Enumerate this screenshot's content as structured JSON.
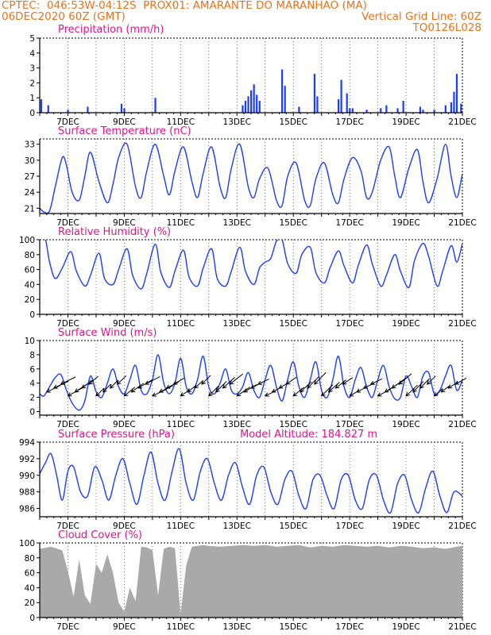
{
  "header": {
    "line1_left": "CPTEC:  046:53W-04:12S  PROX01: AMARANTE DO MARANHAO (MA)",
    "line2_left": "06DEC2020 60Z (GMT)",
    "line2_right": "Vertical Grid Line: 60Z",
    "line3_right": "TQ0126L028"
  },
  "colors": {
    "header": "#e8731c",
    "title": "#e0148a",
    "series": "#1a3cff",
    "cloud": "#a9a9a9"
  },
  "x_axis": {
    "day_range": [
      6,
      21
    ],
    "tick_labels": [
      "7DEC",
      "9DEC",
      "11DEC",
      "13DEC",
      "15DEC",
      "17DEC",
      "19DEC",
      "21DEC"
    ],
    "tick_days": [
      7,
      9,
      11,
      13,
      15,
      17,
      19,
      21
    ]
  },
  "chart_data": [
    {
      "type": "bar",
      "title": "Precipitation (mm/h)",
      "ylim": [
        0,
        5
      ],
      "yticks": [
        0,
        1,
        2,
        3,
        4,
        5
      ],
      "x": [
        6.05,
        6.3,
        7.0,
        7.7,
        8.9,
        9.0,
        10.1,
        13.2,
        13.3,
        13.4,
        13.5,
        13.6,
        13.7,
        13.8,
        14.6,
        14.7,
        15.2,
        15.75,
        15.85,
        16.6,
        16.7,
        16.9,
        17.0,
        17.1,
        17.6,
        18.1,
        18.3,
        18.7,
        18.9,
        19.5,
        19.6,
        20.0,
        20.4,
        20.6,
        20.7,
        20.8,
        20.95
      ],
      "values": [
        0.9,
        0.5,
        0.2,
        0.4,
        0.6,
        0.3,
        1.0,
        0.5,
        0.8,
        1.1,
        1.5,
        1.9,
        1.2,
        0.8,
        2.9,
        1.8,
        0.4,
        2.6,
        1.1,
        0.9,
        2.2,
        1.3,
        0.3,
        0.3,
        0.2,
        0.3,
        0.5,
        0.3,
        0.8,
        0.4,
        0.2,
        0.2,
        0.5,
        0.7,
        1.4,
        2.6,
        0.6
      ]
    },
    {
      "type": "line",
      "title": "Surface Temperature (nC)",
      "ylim": [
        20,
        34
      ],
      "yticks": [
        21,
        24,
        27,
        30,
        33
      ],
      "x": [
        6.0,
        6.15,
        6.35,
        6.55,
        6.8,
        6.95,
        7.15,
        7.4,
        7.6,
        7.8,
        8.1,
        8.4,
        8.6,
        8.8,
        9.1,
        9.4,
        9.6,
        9.8,
        10.1,
        10.4,
        10.6,
        10.8,
        11.1,
        11.4,
        11.6,
        11.8,
        12.1,
        12.4,
        12.6,
        12.8,
        13.1,
        13.4,
        13.6,
        13.8,
        14.1,
        14.4,
        14.6,
        14.8,
        15.1,
        15.4,
        15.6,
        15.8,
        16.1,
        16.4,
        16.6,
        16.8,
        17.1,
        17.4,
        17.6,
        17.8,
        18.1,
        18.4,
        18.6,
        18.8,
        19.1,
        19.4,
        19.6,
        19.8,
        20.1,
        20.4,
        20.6,
        20.8,
        21.0
      ],
      "values": [
        21.0,
        20.3,
        20.5,
        25,
        30.5,
        29,
        24,
        22.5,
        27,
        31.5,
        26,
        22,
        25.5,
        30.5,
        33,
        25,
        23,
        28,
        33,
        27,
        23.5,
        28,
        32.5,
        26,
        23,
        27.5,
        32.5,
        25,
        23,
        28.5,
        33,
        25,
        23,
        26.5,
        28.5,
        22.5,
        21.5,
        27,
        29.5,
        22.5,
        21.5,
        26.5,
        29.5,
        23.5,
        22,
        26.5,
        30.5,
        28,
        23,
        24,
        30,
        32.5,
        27,
        23,
        28.5,
        32,
        26,
        22,
        26.5,
        33,
        27,
        23,
        27.5
      ]
    },
    {
      "type": "line",
      "title": "Relative Humidity (%)",
      "ylim": [
        0,
        100
      ],
      "yticks": [
        0,
        20,
        40,
        60,
        80,
        100
      ],
      "x": [
        6.0,
        6.2,
        6.35,
        6.55,
        6.8,
        7.1,
        7.3,
        7.6,
        7.8,
        8.1,
        8.3,
        8.6,
        8.8,
        9.1,
        9.3,
        9.6,
        9.8,
        10.1,
        10.3,
        10.6,
        10.8,
        11.1,
        11.3,
        11.6,
        11.8,
        12.1,
        12.3,
        12.6,
        12.8,
        13.1,
        13.3,
        13.6,
        13.8,
        14.0,
        14.2,
        14.4,
        14.6,
        14.8,
        15.1,
        15.3,
        15.6,
        15.8,
        16.1,
        16.3,
        16.6,
        16.8,
        17.1,
        17.3,
        17.6,
        17.8,
        18.1,
        18.3,
        18.6,
        18.8,
        19.1,
        19.3,
        19.6,
        19.8,
        20.1,
        20.3,
        20.6,
        20.8,
        21.0
      ],
      "values": [
        100,
        100,
        70,
        48,
        62,
        84,
        58,
        38,
        52,
        82,
        48,
        40,
        60,
        88,
        52,
        34,
        55,
        94,
        56,
        36,
        58,
        86,
        50,
        38,
        62,
        88,
        48,
        38,
        58,
        90,
        58,
        40,
        62,
        70,
        75,
        98,
        100,
        68,
        55,
        80,
        90,
        56,
        42,
        62,
        85,
        65,
        42,
        65,
        93,
        68,
        38,
        52,
        80,
        58,
        36,
        72,
        95,
        78,
        38,
        58,
        92,
        70,
        95
      ]
    },
    {
      "type": "line",
      "title": "Surface Wind (m/s)",
      "ylim": [
        -0.5,
        10
      ],
      "yticks": [
        0,
        2,
        4,
        6,
        8,
        10
      ],
      "x": [
        6.0,
        6.15,
        6.35,
        6.55,
        6.75,
        6.95,
        7.15,
        7.4,
        7.6,
        7.8,
        8.0,
        8.2,
        8.4,
        8.6,
        8.8,
        9.0,
        9.2,
        9.4,
        9.6,
        9.8,
        10.0,
        10.2,
        10.4,
        10.6,
        10.8,
        11.0,
        11.2,
        11.4,
        11.6,
        11.8,
        12.0,
        12.2,
        12.4,
        12.6,
        12.8,
        13.0,
        13.2,
        13.4,
        13.6,
        13.8,
        14.0,
        14.2,
        14.4,
        14.6,
        14.8,
        15.0,
        15.2,
        15.4,
        15.6,
        15.8,
        16.0,
        16.2,
        16.4,
        16.6,
        16.8,
        17.0,
        17.2,
        17.4,
        17.6,
        17.8,
        18.0,
        18.2,
        18.4,
        18.6,
        18.8,
        19.0,
        19.2,
        19.4,
        19.6,
        19.8,
        20.0,
        20.2,
        20.4,
        20.6,
        20.8,
        21.0
      ],
      "values": [
        2.5,
        2.2,
        3.5,
        4.8,
        5.2,
        3.0,
        1.2,
        0.2,
        1.5,
        5.0,
        2.8,
        2.0,
        4.0,
        6.0,
        3.5,
        2.5,
        4.5,
        6.5,
        3.0,
        2.5,
        4.5,
        8.0,
        4.0,
        2.5,
        4.0,
        7.5,
        3.5,
        2.5,
        4.5,
        7.8,
        3.5,
        2.5,
        4.0,
        6.0,
        3.0,
        2.5,
        3.5,
        5.5,
        3.0,
        2.0,
        4.5,
        6.5,
        3.5,
        1.5,
        4.5,
        7.0,
        3.5,
        2.0,
        4.5,
        7.0,
        3.0,
        2.0,
        4.5,
        7.8,
        3.5,
        2.0,
        4.5,
        6.2,
        3.5,
        2.0,
        4.5,
        6.5,
        3.5,
        1.8,
        2.0,
        5.0,
        3.5,
        2.0,
        5.0,
        5.5,
        2.5,
        3.0,
        5.0,
        6.5,
        3.0,
        4.5
      ]
    },
    {
      "type": "line",
      "title": "Surface Pressure (hPa)",
      "annotation": "Model Altitude: 184.827  m",
      "ylim": [
        985,
        994
      ],
      "yticks": [
        986,
        988,
        990,
        992,
        994
      ],
      "x": [
        6.0,
        6.2,
        6.4,
        6.6,
        6.8,
        7.0,
        7.2,
        7.45,
        7.7,
        7.95,
        8.2,
        8.45,
        8.7,
        8.95,
        9.2,
        9.45,
        9.7,
        9.95,
        10.2,
        10.45,
        10.7,
        10.95,
        11.2,
        11.45,
        11.7,
        11.95,
        12.2,
        12.45,
        12.7,
        12.95,
        13.2,
        13.45,
        13.7,
        13.95,
        14.2,
        14.45,
        14.7,
        14.95,
        15.2,
        15.45,
        15.7,
        15.95,
        16.2,
        16.45,
        16.7,
        16.95,
        17.2,
        17.45,
        17.7,
        17.95,
        18.2,
        18.45,
        18.7,
        18.95,
        19.2,
        19.45,
        19.7,
        19.95,
        20.2,
        20.45,
        20.7,
        21.0
      ],
      "values": [
        990.2,
        991.5,
        992.6,
        990,
        987,
        990.5,
        991,
        988,
        987.5,
        991,
        989.5,
        987,
        990,
        992,
        989,
        986.5,
        990,
        992.8,
        989,
        987,
        990.5,
        993.2,
        989,
        987,
        990.5,
        992,
        989,
        987,
        990,
        991.5,
        988.5,
        986.5,
        990,
        991,
        988,
        986.5,
        989.5,
        990.5,
        987.5,
        986,
        989.5,
        990,
        987.5,
        986,
        989.5,
        990,
        987,
        986,
        989.5,
        990,
        987,
        985.5,
        989,
        990,
        987,
        985.5,
        988.5,
        990.5,
        987.5,
        985.5,
        988,
        987.5
      ]
    },
    {
      "type": "area",
      "title": "Cloud Cover (%)",
      "ylim": [
        0,
        100
      ],
      "yticks": [
        0,
        20,
        40,
        60,
        80,
        100
      ],
      "x": [
        6.0,
        6.4,
        6.8,
        7.0,
        7.2,
        7.4,
        7.6,
        7.8,
        8.0,
        8.2,
        8.4,
        8.6,
        8.8,
        9.0,
        9.2,
        9.4,
        9.6,
        9.8,
        10.0,
        10.2,
        10.4,
        10.6,
        10.8,
        11.0,
        11.2,
        11.4,
        11.6,
        11.8,
        12.0,
        12.4,
        12.8,
        13.2,
        13.6,
        14.0,
        14.4,
        14.8,
        15.2,
        15.6,
        16.0,
        16.4,
        16.8,
        17.2,
        17.6,
        18.0,
        18.4,
        18.8,
        19.2,
        19.6,
        20.0,
        20.4,
        20.8,
        21.0
      ],
      "values": [
        92,
        95,
        90,
        62,
        28,
        78,
        30,
        18,
        72,
        60,
        85,
        60,
        20,
        8,
        40,
        22,
        95,
        94,
        90,
        30,
        92,
        95,
        93,
        5,
        70,
        95,
        96,
        97,
        96,
        95,
        96,
        97,
        96,
        97,
        95,
        96,
        97,
        94,
        96,
        95,
        97,
        96,
        95,
        96,
        94,
        96,
        95,
        93,
        94,
        92,
        95,
        96
      ]
    }
  ]
}
